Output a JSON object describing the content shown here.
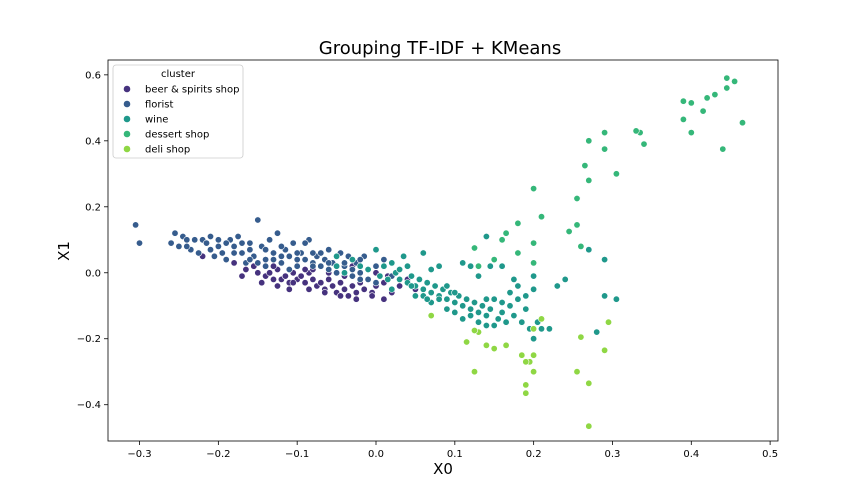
{
  "chart_data": {
    "type": "scatter",
    "title": "Grouping TF-IDF + KMeans",
    "xlabel": "X0",
    "ylabel": "X1",
    "xlim": [
      -0.34,
      0.51
    ],
    "ylim": [
      -0.51,
      0.645
    ],
    "xticks": [
      "−0.3",
      "−0.2",
      "−0.1",
      "0.0",
      "0.1",
      "0.2",
      "0.3",
      "0.4",
      "0.5"
    ],
    "xtick_values": [
      -0.3,
      -0.2,
      -0.1,
      0.0,
      0.1,
      0.2,
      0.3,
      0.4,
      0.5
    ],
    "yticks": [
      "−0.4",
      "−0.2",
      "0.0",
      "0.2",
      "0.4",
      "0.6"
    ],
    "ytick_values": [
      -0.4,
      -0.2,
      0.0,
      0.2,
      0.4,
      0.6
    ],
    "grid": false,
    "legend": {
      "title": "cluster",
      "position": "top-left"
    },
    "series": [
      {
        "name": "beer & spirits shop",
        "color": "#46327e",
        "points": [
          [
            -0.22,
            0.05
          ],
          [
            -0.18,
            0.03
          ],
          [
            -0.17,
            -0.01
          ],
          [
            -0.155,
            0.02
          ],
          [
            -0.15,
            0.0
          ],
          [
            -0.14,
            -0.01
          ],
          [
            -0.135,
            0.0
          ],
          [
            -0.13,
            -0.02
          ],
          [
            -0.125,
            0.01
          ],
          [
            -0.12,
            -0.02
          ],
          [
            -0.115,
            -0.01
          ],
          [
            -0.11,
            -0.03
          ],
          [
            -0.105,
            0.0
          ],
          [
            -0.1,
            -0.02
          ],
          [
            -0.095,
            -0.01
          ],
          [
            -0.09,
            -0.03
          ],
          [
            -0.085,
            0.0
          ],
          [
            -0.08,
            -0.02
          ],
          [
            -0.075,
            -0.04
          ],
          [
            -0.07,
            -0.03
          ],
          [
            -0.065,
            -0.05
          ],
          [
            -0.06,
            -0.02
          ],
          [
            -0.055,
            -0.04
          ],
          [
            -0.05,
            -0.06
          ],
          [
            -0.045,
            -0.03
          ],
          [
            -0.04,
            -0.05
          ],
          [
            -0.035,
            -0.07
          ],
          [
            -0.03,
            -0.04
          ],
          [
            -0.025,
            -0.06
          ],
          [
            -0.02,
            -0.03
          ],
          [
            -0.015,
            -0.05
          ],
          [
            -0.01,
            -0.02
          ],
          [
            -0.005,
            -0.06
          ],
          [
            0.0,
            -0.04
          ],
          [
            0.01,
            -0.03
          ],
          [
            0.02,
            -0.06
          ],
          [
            0.03,
            -0.04
          ],
          [
            0.04,
            -0.02
          ],
          [
            0.05,
            -0.05
          ],
          [
            -0.14,
            0.04
          ],
          [
            -0.12,
            0.03
          ],
          [
            -0.1,
            0.02
          ],
          [
            -0.08,
            0.01
          ],
          [
            -0.06,
            0.0
          ],
          [
            -0.04,
            -0.01
          ],
          [
            -0.02,
            -0.02
          ],
          [
            0.0,
            0.0
          ],
          [
            0.015,
            -0.01
          ],
          [
            -0.165,
            0.01
          ],
          [
            -0.145,
            -0.03
          ],
          [
            -0.125,
            -0.04
          ],
          [
            -0.105,
            -0.03
          ],
          [
            -0.085,
            -0.05
          ],
          [
            -0.065,
            -0.06
          ],
          [
            -0.045,
            -0.07
          ],
          [
            -0.025,
            -0.08
          ],
          [
            -0.005,
            -0.07
          ],
          [
            0.01,
            -0.08
          ],
          [
            -0.11,
            -0.05
          ],
          [
            -0.03,
            0.02
          ],
          [
            -0.13,
            0.02
          ],
          [
            -0.09,
            0.01
          ]
        ]
      },
      {
        "name": "florist",
        "color": "#365c8d",
        "points": [
          [
            -0.305,
            0.145
          ],
          [
            -0.3,
            0.09
          ],
          [
            -0.26,
            0.09
          ],
          [
            -0.255,
            0.12
          ],
          [
            -0.25,
            0.08
          ],
          [
            -0.245,
            0.11
          ],
          [
            -0.24,
            0.1
          ],
          [
            -0.235,
            0.07
          ],
          [
            -0.23,
            0.1
          ],
          [
            -0.225,
            0.06
          ],
          [
            -0.22,
            0.1
          ],
          [
            -0.215,
            0.09
          ],
          [
            -0.21,
            0.07
          ],
          [
            -0.205,
            0.05
          ],
          [
            -0.2,
            0.08
          ],
          [
            -0.195,
            0.06
          ],
          [
            -0.19,
            0.04
          ],
          [
            -0.185,
            0.1
          ],
          [
            -0.18,
            0.08
          ],
          [
            -0.175,
            0.11
          ],
          [
            -0.17,
            0.06
          ],
          [
            -0.165,
            0.03
          ],
          [
            -0.16,
            0.07
          ],
          [
            -0.155,
            0.05
          ],
          [
            -0.15,
            0.16
          ],
          [
            -0.145,
            0.08
          ],
          [
            -0.14,
            0.04
          ],
          [
            -0.135,
            0.1
          ],
          [
            -0.13,
            0.06
          ],
          [
            -0.125,
            0.12
          ],
          [
            -0.12,
            0.03
          ],
          [
            -0.115,
            0.07
          ],
          [
            -0.11,
            0.05
          ],
          [
            -0.105,
            0.09
          ],
          [
            -0.1,
            0.02
          ],
          [
            -0.095,
            0.06
          ],
          [
            -0.09,
            0.04
          ],
          [
            -0.085,
            0.1
          ],
          [
            -0.08,
            0.03
          ],
          [
            -0.075,
            0.05
          ],
          [
            -0.07,
            0.02
          ],
          [
            -0.065,
            0.04
          ],
          [
            -0.06,
            0.01
          ],
          [
            -0.055,
            0.03
          ],
          [
            -0.05,
            0.0
          ],
          [
            -0.045,
            0.06
          ],
          [
            -0.04,
            0.02
          ],
          [
            -0.035,
            0.05
          ],
          [
            -0.03,
            -0.01
          ],
          [
            -0.025,
            0.03
          ],
          [
            -0.02,
            0.0
          ],
          [
            -0.015,
            0.05
          ],
          [
            -0.01,
            -0.02
          ],
          [
            0.0,
            0.02
          ],
          [
            0.01,
            0.04
          ],
          [
            -0.2,
            0.1
          ],
          [
            -0.19,
            0.09
          ],
          [
            -0.18,
            0.06
          ],
          [
            -0.17,
            0.09
          ],
          [
            -0.16,
            0.04
          ],
          [
            -0.15,
            0.03
          ],
          [
            -0.14,
            0.02
          ],
          [
            -0.13,
            0.04
          ],
          [
            -0.12,
            0.08
          ],
          [
            -0.11,
            0.01
          ],
          [
            -0.1,
            0.06
          ],
          [
            -0.09,
            0.09
          ],
          [
            -0.08,
            0.02
          ],
          [
            -0.07,
            0.06
          ],
          [
            -0.06,
            0.03
          ],
          [
            -0.05,
            0.02
          ],
          [
            -0.04,
            0.0
          ],
          [
            -0.03,
            0.01
          ],
          [
            -0.02,
            0.04
          ],
          [
            -0.24,
            0.08
          ],
          [
            -0.21,
            0.11
          ],
          [
            -0.16,
            0.09
          ],
          [
            -0.14,
            0.07
          ],
          [
            -0.12,
            0.05
          ],
          [
            -0.1,
            0.04
          ],
          [
            -0.08,
            0.06
          ],
          [
            -0.06,
            0.07
          ],
          [
            -0.04,
            0.03
          ],
          [
            -0.02,
            -0.02
          ],
          [
            0.0,
            -0.03
          ],
          [
            0.02,
            -0.01
          ]
        ]
      },
      {
        "name": "wine",
        "color": "#1f988b",
        "points": [
          [
            -0.05,
            0.02
          ],
          [
            -0.04,
            0.0
          ],
          [
            -0.03,
            0.04
          ],
          [
            -0.02,
            0.02
          ],
          [
            -0.01,
            0.01
          ],
          [
            0.0,
            0.07
          ],
          [
            0.005,
            -0.01
          ],
          [
            0.01,
            0.02
          ],
          [
            0.015,
            -0.02
          ],
          [
            0.02,
            0.03
          ],
          [
            0.025,
            0.0
          ],
          [
            0.03,
            -0.02
          ],
          [
            0.035,
            0.05
          ],
          [
            0.04,
            -0.03
          ],
          [
            0.045,
            -0.01
          ],
          [
            0.05,
            -0.04
          ],
          [
            0.055,
            -0.02
          ],
          [
            0.06,
            -0.05
          ],
          [
            0.065,
            -0.03
          ],
          [
            0.07,
            -0.06
          ],
          [
            0.075,
            -0.04
          ],
          [
            0.08,
            -0.07
          ],
          [
            0.085,
            -0.05
          ],
          [
            0.09,
            -0.08
          ],
          [
            0.095,
            -0.06
          ],
          [
            0.1,
            -0.09
          ],
          [
            0.105,
            -0.07
          ],
          [
            0.11,
            -0.1
          ],
          [
            0.115,
            -0.08
          ],
          [
            0.12,
            -0.11
          ],
          [
            0.125,
            -0.09
          ],
          [
            0.13,
            -0.12
          ],
          [
            0.135,
            -0.1
          ],
          [
            0.14,
            -0.13
          ],
          [
            0.145,
            -0.11
          ],
          [
            0.15,
            -0.16
          ],
          [
            0.155,
            -0.14
          ],
          [
            0.16,
            -0.12
          ],
          [
            0.165,
            -0.15
          ],
          [
            0.17,
            -0.1
          ],
          [
            0.175,
            -0.13
          ],
          [
            0.18,
            -0.08
          ],
          [
            0.185,
            -0.15
          ],
          [
            0.19,
            -0.11
          ],
          [
            0.195,
            -0.17
          ],
          [
            0.2,
            -0.2
          ],
          [
            0.205,
            -0.15
          ],
          [
            0.21,
            -0.17
          ],
          [
            0.22,
            -0.17
          ],
          [
            0.23,
            -0.04
          ],
          [
            0.27,
            0.07
          ],
          [
            0.28,
            -0.18
          ],
          [
            0.29,
            0.04
          ],
          [
            0.29,
            -0.07
          ],
          [
            0.305,
            -0.08
          ],
          [
            0.24,
            -0.02
          ],
          [
            0.14,
            -0.08
          ],
          [
            0.145,
            0.02
          ],
          [
            0.12,
            0.02
          ],
          [
            0.11,
            0.03
          ],
          [
            0.13,
            -0.01
          ],
          [
            0.06,
            0.06
          ],
          [
            0.07,
            0.01
          ],
          [
            0.08,
            0.02
          ],
          [
            0.09,
            -0.04
          ],
          [
            0.1,
            -0.06
          ],
          [
            0.06,
            -0.07
          ],
          [
            0.07,
            -0.09
          ],
          [
            0.08,
            -0.08
          ],
          [
            0.09,
            -0.11
          ],
          [
            0.1,
            -0.12
          ],
          [
            0.11,
            -0.14
          ],
          [
            0.12,
            -0.13
          ],
          [
            0.13,
            -0.15
          ],
          [
            0.14,
            -0.16
          ],
          [
            0.15,
            -0.08
          ],
          [
            0.16,
            -0.09
          ],
          [
            0.17,
            -0.06
          ],
          [
            0.18,
            -0.04
          ],
          [
            0.19,
            -0.07
          ],
          [
            0.2,
            -0.01
          ],
          [
            0.14,
            0.11
          ],
          [
            0.16,
            0.02
          ],
          [
            0.2,
            -0.05
          ],
          [
            0.175,
            -0.02
          ],
          [
            -0.05,
            0.05
          ],
          [
            0.03,
            0.01
          ],
          [
            0.04,
            0.02
          ],
          [
            0.02,
            -0.05
          ],
          [
            0.05,
            -0.07
          ],
          [
            0.045,
            -0.04
          ],
          [
            0.065,
            -0.08
          ]
        ]
      },
      {
        "name": "dessert shop",
        "color": "#35b779",
        "points": [
          [
            0.445,
            0.59
          ],
          [
            0.455,
            0.58
          ],
          [
            0.43,
            0.54
          ],
          [
            0.445,
            0.56
          ],
          [
            0.42,
            0.53
          ],
          [
            0.39,
            0.52
          ],
          [
            0.4,
            0.515
          ],
          [
            0.415,
            0.49
          ],
          [
            0.465,
            0.455
          ],
          [
            0.39,
            0.465
          ],
          [
            0.4,
            0.425
          ],
          [
            0.44,
            0.375
          ],
          [
            0.335,
            0.425
          ],
          [
            0.34,
            0.39
          ],
          [
            0.29,
            0.425
          ],
          [
            0.305,
            0.3
          ],
          [
            0.27,
            0.4
          ],
          [
            0.29,
            0.375
          ],
          [
            0.265,
            0.325
          ],
          [
            0.27,
            0.28
          ],
          [
            0.2,
            0.255
          ],
          [
            0.255,
            0.225
          ],
          [
            0.255,
            0.145
          ],
          [
            0.245,
            0.125
          ],
          [
            0.21,
            0.17
          ],
          [
            0.18,
            0.15
          ],
          [
            0.16,
            0.1
          ],
          [
            0.125,
            0.075
          ],
          [
            0.18,
            0.06
          ],
          [
            0.2,
            0.09
          ],
          [
            0.15,
            0.04
          ],
          [
            0.2,
            0.03
          ],
          [
            0.165,
            0.12
          ],
          [
            0.13,
            0.02
          ],
          [
            0.26,
            0.08
          ],
          [
            0.33,
            0.43
          ]
        ]
      },
      {
        "name": "deli shop",
        "color": "#8fd744",
        "points": [
          [
            0.27,
            -0.465
          ],
          [
            0.19,
            -0.365
          ],
          [
            0.19,
            -0.34
          ],
          [
            0.2,
            -0.3
          ],
          [
            0.255,
            -0.3
          ],
          [
            0.27,
            -0.335
          ],
          [
            0.125,
            -0.3
          ],
          [
            0.185,
            -0.25
          ],
          [
            0.195,
            -0.27
          ],
          [
            0.2,
            -0.25
          ],
          [
            0.19,
            -0.27
          ],
          [
            0.14,
            -0.22
          ],
          [
            0.15,
            -0.23
          ],
          [
            0.165,
            -0.22
          ],
          [
            0.115,
            -0.21
          ],
          [
            0.13,
            -0.18
          ],
          [
            0.2,
            -0.17
          ],
          [
            0.21,
            -0.14
          ],
          [
            0.26,
            -0.195
          ],
          [
            0.29,
            -0.235
          ],
          [
            0.295,
            -0.15
          ],
          [
            0.07,
            -0.13
          ],
          [
            0.125,
            -0.175
          ]
        ]
      }
    ]
  }
}
